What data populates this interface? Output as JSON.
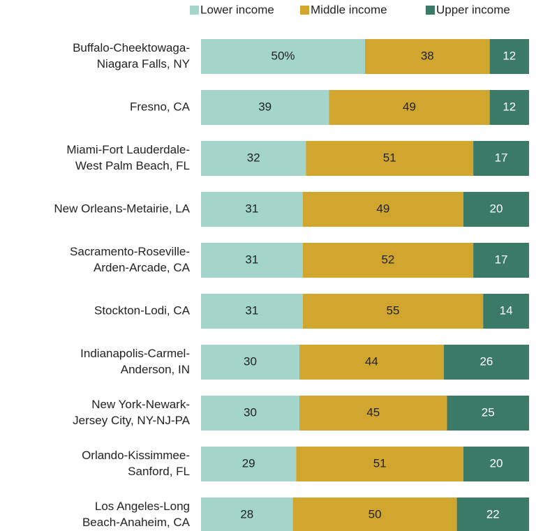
{
  "chart_data": {
    "type": "stacked-bar-horizontal",
    "categories": [
      [
        "Buffalo-Cheektowaga-",
        "Niagara Falls, NY"
      ],
      [
        "Fresno, CA"
      ],
      [
        "Miami-Fort Lauderdale-",
        "West Palm Beach, FL"
      ],
      [
        "New Orleans-Metairie, LA"
      ],
      [
        "Sacramento-Roseville-",
        "Arden-Arcade, CA"
      ],
      [
        "Stockton-Lodi, CA"
      ],
      [
        "Indianapolis-Carmel-",
        "Anderson, IN"
      ],
      [
        "New York-Newark-",
        "Jersey City, NY-NJ-PA"
      ],
      [
        "Orlando-Kissimmee-",
        "Sanford, FL"
      ],
      [
        "Los Angeles-Long",
        "Beach-Anaheim, CA"
      ]
    ],
    "series": [
      {
        "name": "Lower income",
        "color": "#a3d5cb",
        "values": [
          50,
          39,
          32,
          31,
          31,
          31,
          30,
          30,
          29,
          28
        ],
        "value_labels": [
          "50%",
          "39",
          "32",
          "31",
          "31",
          "31",
          "30",
          "30",
          "29",
          "28"
        ]
      },
      {
        "name": "Middle income",
        "color": "#d1a62f",
        "values": [
          38,
          49,
          51,
          49,
          52,
          55,
          44,
          45,
          51,
          50
        ]
      },
      {
        "name": "Upper income",
        "color": "#3c7a68",
        "values": [
          12,
          12,
          17,
          20,
          17,
          14,
          26,
          25,
          20,
          22
        ]
      }
    ],
    "legend": "top-right"
  }
}
